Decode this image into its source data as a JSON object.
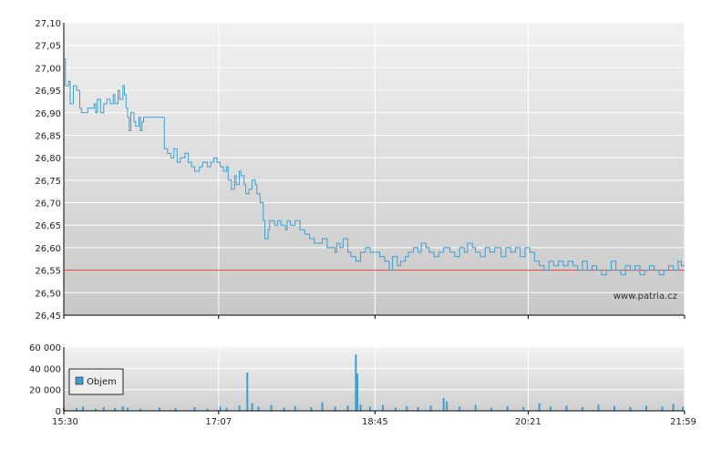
{
  "watermark": "www.patria.cz",
  "colors": {
    "price_line": "#3d9fd0",
    "reference_line": "#e0403a",
    "volume_bar": "#3d9fd0",
    "grid": "#ffffff",
    "axis": "#000000"
  },
  "chart_data": [
    {
      "type": "line",
      "title": "",
      "xlabel": "",
      "ylabel": "",
      "ylim": [
        26.45,
        27.1
      ],
      "y_ticks": [
        "27,10",
        "27,05",
        "27,00",
        "26,95",
        "26,90",
        "26,85",
        "26,80",
        "26,75",
        "26,70",
        "26,65",
        "26,60",
        "26,55",
        "26,50",
        "26,45"
      ],
      "x_ticks": [
        "15:30",
        "17:07",
        "18:45",
        "20:21",
        "21:59"
      ],
      "x_range": [
        "15:30",
        "21:59"
      ],
      "reference_level": 26.55,
      "grid": true,
      "series": [
        {
          "points": [
            [
              "15:30",
              27.02
            ],
            [
              "15:31",
              26.96
            ],
            [
              "15:33",
              26.97
            ],
            [
              "15:34",
              26.92
            ],
            [
              "15:36",
              26.96
            ],
            [
              "15:38",
              26.95
            ],
            [
              "15:40",
              26.91
            ],
            [
              "15:41",
              26.9
            ],
            [
              "15:43",
              26.9
            ],
            [
              "15:45",
              26.91
            ],
            [
              "15:47",
              26.91
            ],
            [
              "15:49",
              26.92
            ],
            [
              "15:50",
              26.9
            ],
            [
              "15:51",
              26.93
            ],
            [
              "15:53",
              26.9
            ],
            [
              "15:55",
              26.92
            ],
            [
              "15:57",
              26.93
            ],
            [
              "15:59",
              26.92
            ],
            [
              "16:01",
              26.94
            ],
            [
              "16:02",
              26.92
            ],
            [
              "16:04",
              26.95
            ],
            [
              "16:05",
              26.93
            ],
            [
              "16:07",
              26.96
            ],
            [
              "16:08",
              26.94
            ],
            [
              "16:09",
              26.91
            ],
            [
              "16:10",
              26.89
            ],
            [
              "16:11",
              26.86
            ],
            [
              "16:12",
              26.9
            ],
            [
              "16:14",
              26.88
            ],
            [
              "16:15",
              26.87
            ],
            [
              "16:17",
              26.89
            ],
            [
              "16:18",
              26.86
            ],
            [
              "16:19",
              26.88
            ],
            [
              "16:20",
              26.89
            ],
            [
              "16:32",
              26.89
            ],
            [
              "16:33",
              26.82
            ],
            [
              "16:35",
              26.81
            ],
            [
              "16:37",
              26.8
            ],
            [
              "16:39",
              26.82
            ],
            [
              "16:41",
              26.79
            ],
            [
              "16:43",
              26.8
            ],
            [
              "16:46",
              26.81
            ],
            [
              "16:48",
              26.79
            ],
            [
              "16:50",
              26.78
            ],
            [
              "16:52",
              26.77
            ],
            [
              "16:55",
              26.78
            ],
            [
              "16:57",
              26.79
            ],
            [
              "17:00",
              26.78
            ],
            [
              "17:02",
              26.79
            ],
            [
              "17:04",
              26.8
            ],
            [
              "17:06",
              26.79
            ],
            [
              "17:08",
              26.78
            ],
            [
              "17:10",
              26.77
            ],
            [
              "17:12",
              26.78
            ],
            [
              "17:13",
              26.75
            ],
            [
              "17:15",
              26.73
            ],
            [
              "17:17",
              26.76
            ],
            [
              "17:18",
              26.74
            ],
            [
              "17:20",
              26.77
            ],
            [
              "17:21",
              26.76
            ],
            [
              "17:23",
              26.74
            ],
            [
              "17:24",
              26.72
            ],
            [
              "17:26",
              26.73
            ],
            [
              "17:28",
              26.75
            ],
            [
              "17:30",
              26.74
            ],
            [
              "17:31",
              26.72
            ],
            [
              "17:33",
              26.7
            ],
            [
              "17:35",
              26.66
            ],
            [
              "17:36",
              26.62
            ],
            [
              "17:38",
              26.64
            ],
            [
              "17:39",
              26.66
            ],
            [
              "17:42",
              26.65
            ],
            [
              "17:44",
              26.66
            ],
            [
              "17:46",
              26.65
            ],
            [
              "17:49",
              26.64
            ],
            [
              "17:50",
              26.66
            ],
            [
              "17:52",
              26.65
            ],
            [
              "17:55",
              26.66
            ],
            [
              "17:58",
              26.64
            ],
            [
              "18:01",
              26.63
            ],
            [
              "18:04",
              26.62
            ],
            [
              "18:07",
              26.61
            ],
            [
              "18:10",
              26.61
            ],
            [
              "18:12",
              26.62
            ],
            [
              "18:15",
              26.6
            ],
            [
              "18:17",
              26.6
            ],
            [
              "18:20",
              26.59
            ],
            [
              "18:21",
              26.61
            ],
            [
              "18:23",
              26.6
            ],
            [
              "18:25",
              26.62
            ],
            [
              "18:28",
              26.59
            ],
            [
              "18:30",
              26.58
            ],
            [
              "18:33",
              26.57
            ],
            [
              "18:36",
              26.59
            ],
            [
              "18:39",
              26.6
            ],
            [
              "18:42",
              26.59
            ],
            [
              "18:45",
              26.59
            ],
            [
              "18:48",
              26.58
            ],
            [
              "18:51",
              26.57
            ],
            [
              "18:54",
              26.55
            ],
            [
              "18:56",
              26.58
            ],
            [
              "18:59",
              26.56
            ],
            [
              "19:01",
              26.57
            ],
            [
              "19:04",
              26.58
            ],
            [
              "19:06",
              26.59
            ],
            [
              "19:09",
              26.6
            ],
            [
              "19:12",
              26.59
            ],
            [
              "19:14",
              26.61
            ],
            [
              "19:17",
              26.6
            ],
            [
              "19:19",
              26.59
            ],
            [
              "19:22",
              26.58
            ],
            [
              "19:25",
              26.59
            ],
            [
              "19:28",
              26.6
            ],
            [
              "19:30",
              26.6
            ],
            [
              "19:32",
              26.59
            ],
            [
              "19:35",
              26.58
            ],
            [
              "19:38",
              26.6
            ],
            [
              "19:41",
              26.59
            ],
            [
              "19:43",
              26.61
            ],
            [
              "19:46",
              26.6
            ],
            [
              "19:48",
              26.59
            ],
            [
              "19:51",
              26.58
            ],
            [
              "19:54",
              26.6
            ],
            [
              "19:57",
              26.59
            ],
            [
              "20:00",
              26.6
            ],
            [
              "20:04",
              26.58
            ],
            [
              "20:07",
              26.6
            ],
            [
              "20:10",
              26.59
            ],
            [
              "20:13",
              26.6
            ],
            [
              "20:16",
              26.58
            ],
            [
              "20:19",
              26.6
            ],
            [
              "20:22",
              26.59
            ],
            [
              "20:25",
              26.57
            ],
            [
              "20:28",
              26.56
            ],
            [
              "20:31",
              26.55
            ],
            [
              "20:34",
              26.57
            ],
            [
              "20:37",
              26.56
            ],
            [
              "20:40",
              26.57
            ],
            [
              "20:43",
              26.56
            ],
            [
              "20:46",
              26.57
            ],
            [
              "20:49",
              26.56
            ],
            [
              "20:52",
              26.55
            ],
            [
              "20:55",
              26.57
            ],
            [
              "20:58",
              26.55
            ],
            [
              "21:01",
              26.56
            ],
            [
              "21:04",
              26.55
            ],
            [
              "21:07",
              26.54
            ],
            [
              "21:10",
              26.55
            ],
            [
              "21:13",
              26.57
            ],
            [
              "21:16",
              26.55
            ],
            [
              "21:19",
              26.54
            ],
            [
              "21:22",
              26.56
            ],
            [
              "21:25",
              26.55
            ],
            [
              "21:28",
              26.56
            ],
            [
              "21:31",
              26.54
            ],
            [
              "21:34",
              26.55
            ],
            [
              "21:37",
              26.56
            ],
            [
              "21:40",
              26.55
            ],
            [
              "21:43",
              26.54
            ],
            [
              "21:46",
              26.55
            ],
            [
              "21:49",
              26.56
            ],
            [
              "21:52",
              26.55
            ],
            [
              "21:55",
              26.57
            ],
            [
              "21:57",
              26.56
            ],
            [
              "21:59",
              26.56
            ]
          ]
        }
      ]
    },
    {
      "type": "bar",
      "title": "",
      "xlabel": "",
      "ylabel": "",
      "ylim": [
        0,
        60000
      ],
      "y_ticks": [
        "60 000",
        "40 000",
        "20 000",
        "0"
      ],
      "x_ticks": [
        "15:30",
        "17:07",
        "18:45",
        "20:21",
        "21:59"
      ],
      "x_range": [
        "15:30",
        "21:59"
      ],
      "legend": {
        "position": "left",
        "entries": [
          "Objem"
        ]
      },
      "grid": true,
      "series": [
        {
          "name": "Objem",
          "points": [
            [
              "15:30",
              3000
            ],
            [
              "15:38",
              2500
            ],
            [
              "15:42",
              4000
            ],
            [
              "15:50",
              2000
            ],
            [
              "15:55",
              3500
            ],
            [
              "16:02",
              2500
            ],
            [
              "16:07",
              4500
            ],
            [
              "16:10",
              3000
            ],
            [
              "16:18",
              2000
            ],
            [
              "16:30",
              3000
            ],
            [
              "16:40",
              2500
            ],
            [
              "16:52",
              3500
            ],
            [
              "17:00",
              2000
            ],
            [
              "17:08",
              4000
            ],
            [
              "17:12",
              3000
            ],
            [
              "17:20",
              5000
            ],
            [
              "17:25",
              36000
            ],
            [
              "17:28",
              7000
            ],
            [
              "17:32",
              4000
            ],
            [
              "17:40",
              5500
            ],
            [
              "17:48",
              3000
            ],
            [
              "17:55",
              4500
            ],
            [
              "18:05",
              3500
            ],
            [
              "18:12",
              8000
            ],
            [
              "18:20",
              4000
            ],
            [
              "18:28",
              5000
            ],
            [
              "18:33",
              53000
            ],
            [
              "18:34",
              35000
            ],
            [
              "18:36",
              6000
            ],
            [
              "18:42",
              4000
            ],
            [
              "18:50",
              5500
            ],
            [
              "18:58",
              3000
            ],
            [
              "19:05",
              4500
            ],
            [
              "19:12",
              3500
            ],
            [
              "19:20",
              5000
            ],
            [
              "19:28",
              12000
            ],
            [
              "19:30",
              9000
            ],
            [
              "19:38",
              4000
            ],
            [
              "19:48",
              5500
            ],
            [
              "19:58",
              3000
            ],
            [
              "20:08",
              4500
            ],
            [
              "20:18",
              3500
            ],
            [
              "20:28",
              7000
            ],
            [
              "20:35",
              4000
            ],
            [
              "20:45",
              5000
            ],
            [
              "20:55",
              3500
            ],
            [
              "21:05",
              6000
            ],
            [
              "21:15",
              4500
            ],
            [
              "21:25",
              3500
            ],
            [
              "21:35",
              5000
            ],
            [
              "21:45",
              4000
            ],
            [
              "21:52",
              6500
            ],
            [
              "21:58",
              4000
            ]
          ]
        }
      ]
    }
  ]
}
